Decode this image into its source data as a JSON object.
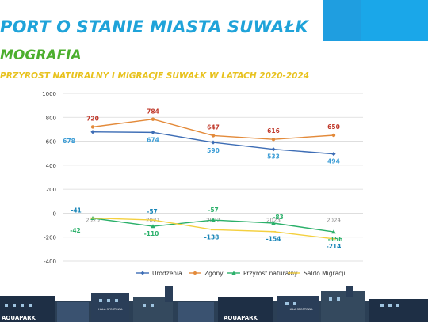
{
  "header": {
    "title": "PORT O STANIE MIASTA SUWAŁK",
    "section": "MOGRAFIA",
    "subtitle": "PRZYROST NATURALNY I MIGRACJE SUWAŁK W LATACH 2020-2024"
  },
  "skyline_labels": [
    "AQUAPARK",
    "HALA SPORTOWA",
    "AQUAPARK",
    "HALA SPORTOWA"
  ],
  "colors": {
    "title": "#1fa3d9",
    "section": "#4caf2e",
    "subtitle": "#e8c21e",
    "urodzenia": "#3d6db5",
    "zgony": "#e38a3a",
    "przyrost": "#2bb06a",
    "saldo": "#f4d03f"
  },
  "chart_data": {
    "type": "line",
    "categories": [
      "2020",
      "2021",
      "2022",
      "2023",
      "2024"
    ],
    "ylim": [
      -400,
      1000
    ],
    "yticks": [
      -400,
      -200,
      0,
      200,
      400,
      600,
      800,
      1000
    ],
    "grid": true,
    "legend_position": "bottom",
    "series": [
      {
        "name": "Urodzenia",
        "values": [
          678,
          674,
          590,
          533,
          494
        ],
        "color": "#3d6db5",
        "label_color": "#3c9dd6",
        "label_pos": "below"
      },
      {
        "name": "Zgony",
        "values": [
          720,
          784,
          647,
          616,
          650
        ],
        "color": "#e38a3a",
        "label_color": "#c0392b",
        "label_pos": "above"
      },
      {
        "name": "Przyrost naturalny",
        "values": [
          -42,
          -110,
          -57,
          -83,
          -156
        ],
        "color": "#2bb06a",
        "label_color": "#2bb06a",
        "label_pos": "mixed"
      },
      {
        "name": "Saldo Migracji",
        "values": [
          -41,
          -57,
          -138,
          -154,
          -214
        ],
        "color": "#f4d03f",
        "label_color": "#1a86b8",
        "label_pos": "mixed"
      }
    ]
  }
}
